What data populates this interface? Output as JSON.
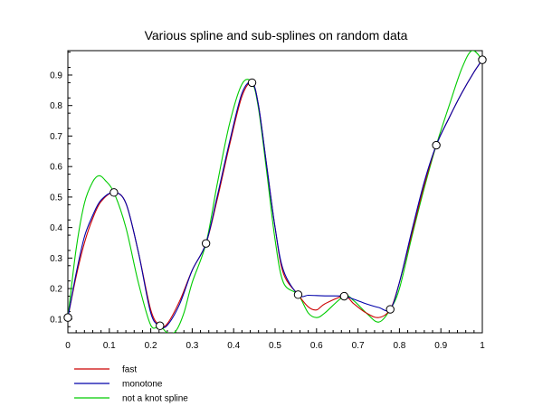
{
  "chart_data": {
    "type": "line",
    "title": "Various spline and sub-splines on random data",
    "xlabel": "",
    "ylabel": "",
    "xlim": [
      0,
      1
    ],
    "ylim": [
      0.055,
      0.98
    ],
    "x_ticks": [
      0,
      0.1,
      0.2,
      0.3,
      0.4,
      0.5,
      0.6,
      0.7,
      0.8,
      0.9,
      1
    ],
    "x_tick_labels": [
      "0",
      "0.1",
      "0.2",
      "0.3",
      "0.4",
      "0.5",
      "0.6",
      "0.7",
      "0.8",
      "0.9",
      "1"
    ],
    "y_ticks": [
      0.1,
      0.2,
      0.3,
      0.4,
      0.5,
      0.6,
      0.7,
      0.8,
      0.9
    ],
    "y_tick_labels": [
      "0.1",
      "0.2",
      "0.3",
      "0.4",
      "0.5",
      "0.6",
      "0.7",
      "0.8",
      "0.9"
    ],
    "grid": false,
    "legend_position": "bottom-left",
    "knots": {
      "x": [
        0,
        0.1111,
        0.2222,
        0.3333,
        0.4444,
        0.5556,
        0.6667,
        0.7778,
        0.8889,
        1
      ],
      "y": [
        0.105,
        0.515,
        0.078,
        0.348,
        0.875,
        0.18,
        0.175,
        0.132,
        0.67,
        0.95
      ]
    },
    "series": [
      {
        "name": "fast",
        "color": "#cc0000",
        "x": [
          0,
          0.02,
          0.04,
          0.06,
          0.08,
          0.1111,
          0.14,
          0.17,
          0.2,
          0.2222,
          0.24,
          0.27,
          0.3,
          0.3333,
          0.36,
          0.39,
          0.42,
          0.4444,
          0.46,
          0.48,
          0.5,
          0.52,
          0.5556,
          0.58,
          0.6,
          0.62,
          0.6667,
          0.69,
          0.72,
          0.75,
          0.7778,
          0.8,
          0.83,
          0.86,
          0.8889,
          0.92,
          0.95,
          0.98,
          1
        ],
        "y": [
          0.105,
          0.24,
          0.35,
          0.43,
          0.485,
          0.515,
          0.48,
          0.32,
          0.13,
          0.078,
          0.085,
          0.16,
          0.26,
          0.348,
          0.49,
          0.67,
          0.83,
          0.875,
          0.8,
          0.6,
          0.4,
          0.25,
          0.18,
          0.14,
          0.13,
          0.15,
          0.175,
          0.15,
          0.12,
          0.105,
          0.132,
          0.22,
          0.38,
          0.54,
          0.67,
          0.76,
          0.84,
          0.91,
          0.95
        ]
      },
      {
        "name": "monotone",
        "color": "#0000aa",
        "x": [
          0,
          0.02,
          0.04,
          0.06,
          0.08,
          0.1111,
          0.14,
          0.17,
          0.2,
          0.2222,
          0.24,
          0.27,
          0.3,
          0.3333,
          0.36,
          0.39,
          0.42,
          0.4444,
          0.46,
          0.48,
          0.5,
          0.52,
          0.5556,
          0.58,
          0.6,
          0.62,
          0.6667,
          0.69,
          0.72,
          0.75,
          0.7778,
          0.8,
          0.83,
          0.86,
          0.8889,
          0.92,
          0.95,
          0.98,
          1
        ],
        "y": [
          0.105,
          0.25,
          0.37,
          0.44,
          0.49,
          0.515,
          0.48,
          0.32,
          0.12,
          0.078,
          0.08,
          0.15,
          0.26,
          0.348,
          0.5,
          0.68,
          0.84,
          0.875,
          0.8,
          0.6,
          0.4,
          0.26,
          0.18,
          0.178,
          0.177,
          0.176,
          0.175,
          0.165,
          0.15,
          0.138,
          0.132,
          0.22,
          0.39,
          0.55,
          0.67,
          0.76,
          0.84,
          0.91,
          0.95
        ]
      },
      {
        "name": "not a knot spline",
        "color": "#00cc00",
        "x": [
          0,
          0.02,
          0.04,
          0.06,
          0.075,
          0.09,
          0.1111,
          0.14,
          0.17,
          0.2,
          0.2222,
          0.24,
          0.26,
          0.28,
          0.3,
          0.3333,
          0.36,
          0.39,
          0.42,
          0.4444,
          0.46,
          0.48,
          0.5,
          0.52,
          0.5556,
          0.58,
          0.6,
          0.62,
          0.6667,
          0.69,
          0.72,
          0.75,
          0.7778,
          0.8,
          0.83,
          0.86,
          0.8889,
          0.92,
          0.95,
          0.975,
          1
        ],
        "y": [
          0.105,
          0.33,
          0.48,
          0.55,
          0.57,
          0.555,
          0.515,
          0.4,
          0.22,
          0.08,
          0.078,
          0.055,
          0.06,
          0.12,
          0.22,
          0.348,
          0.54,
          0.74,
          0.87,
          0.875,
          0.79,
          0.58,
          0.36,
          0.22,
          0.18,
          0.12,
          0.105,
          0.12,
          0.175,
          0.16,
          0.12,
          0.09,
          0.132,
          0.2,
          0.37,
          0.53,
          0.67,
          0.8,
          0.92,
          0.98,
          0.95
        ]
      }
    ]
  }
}
